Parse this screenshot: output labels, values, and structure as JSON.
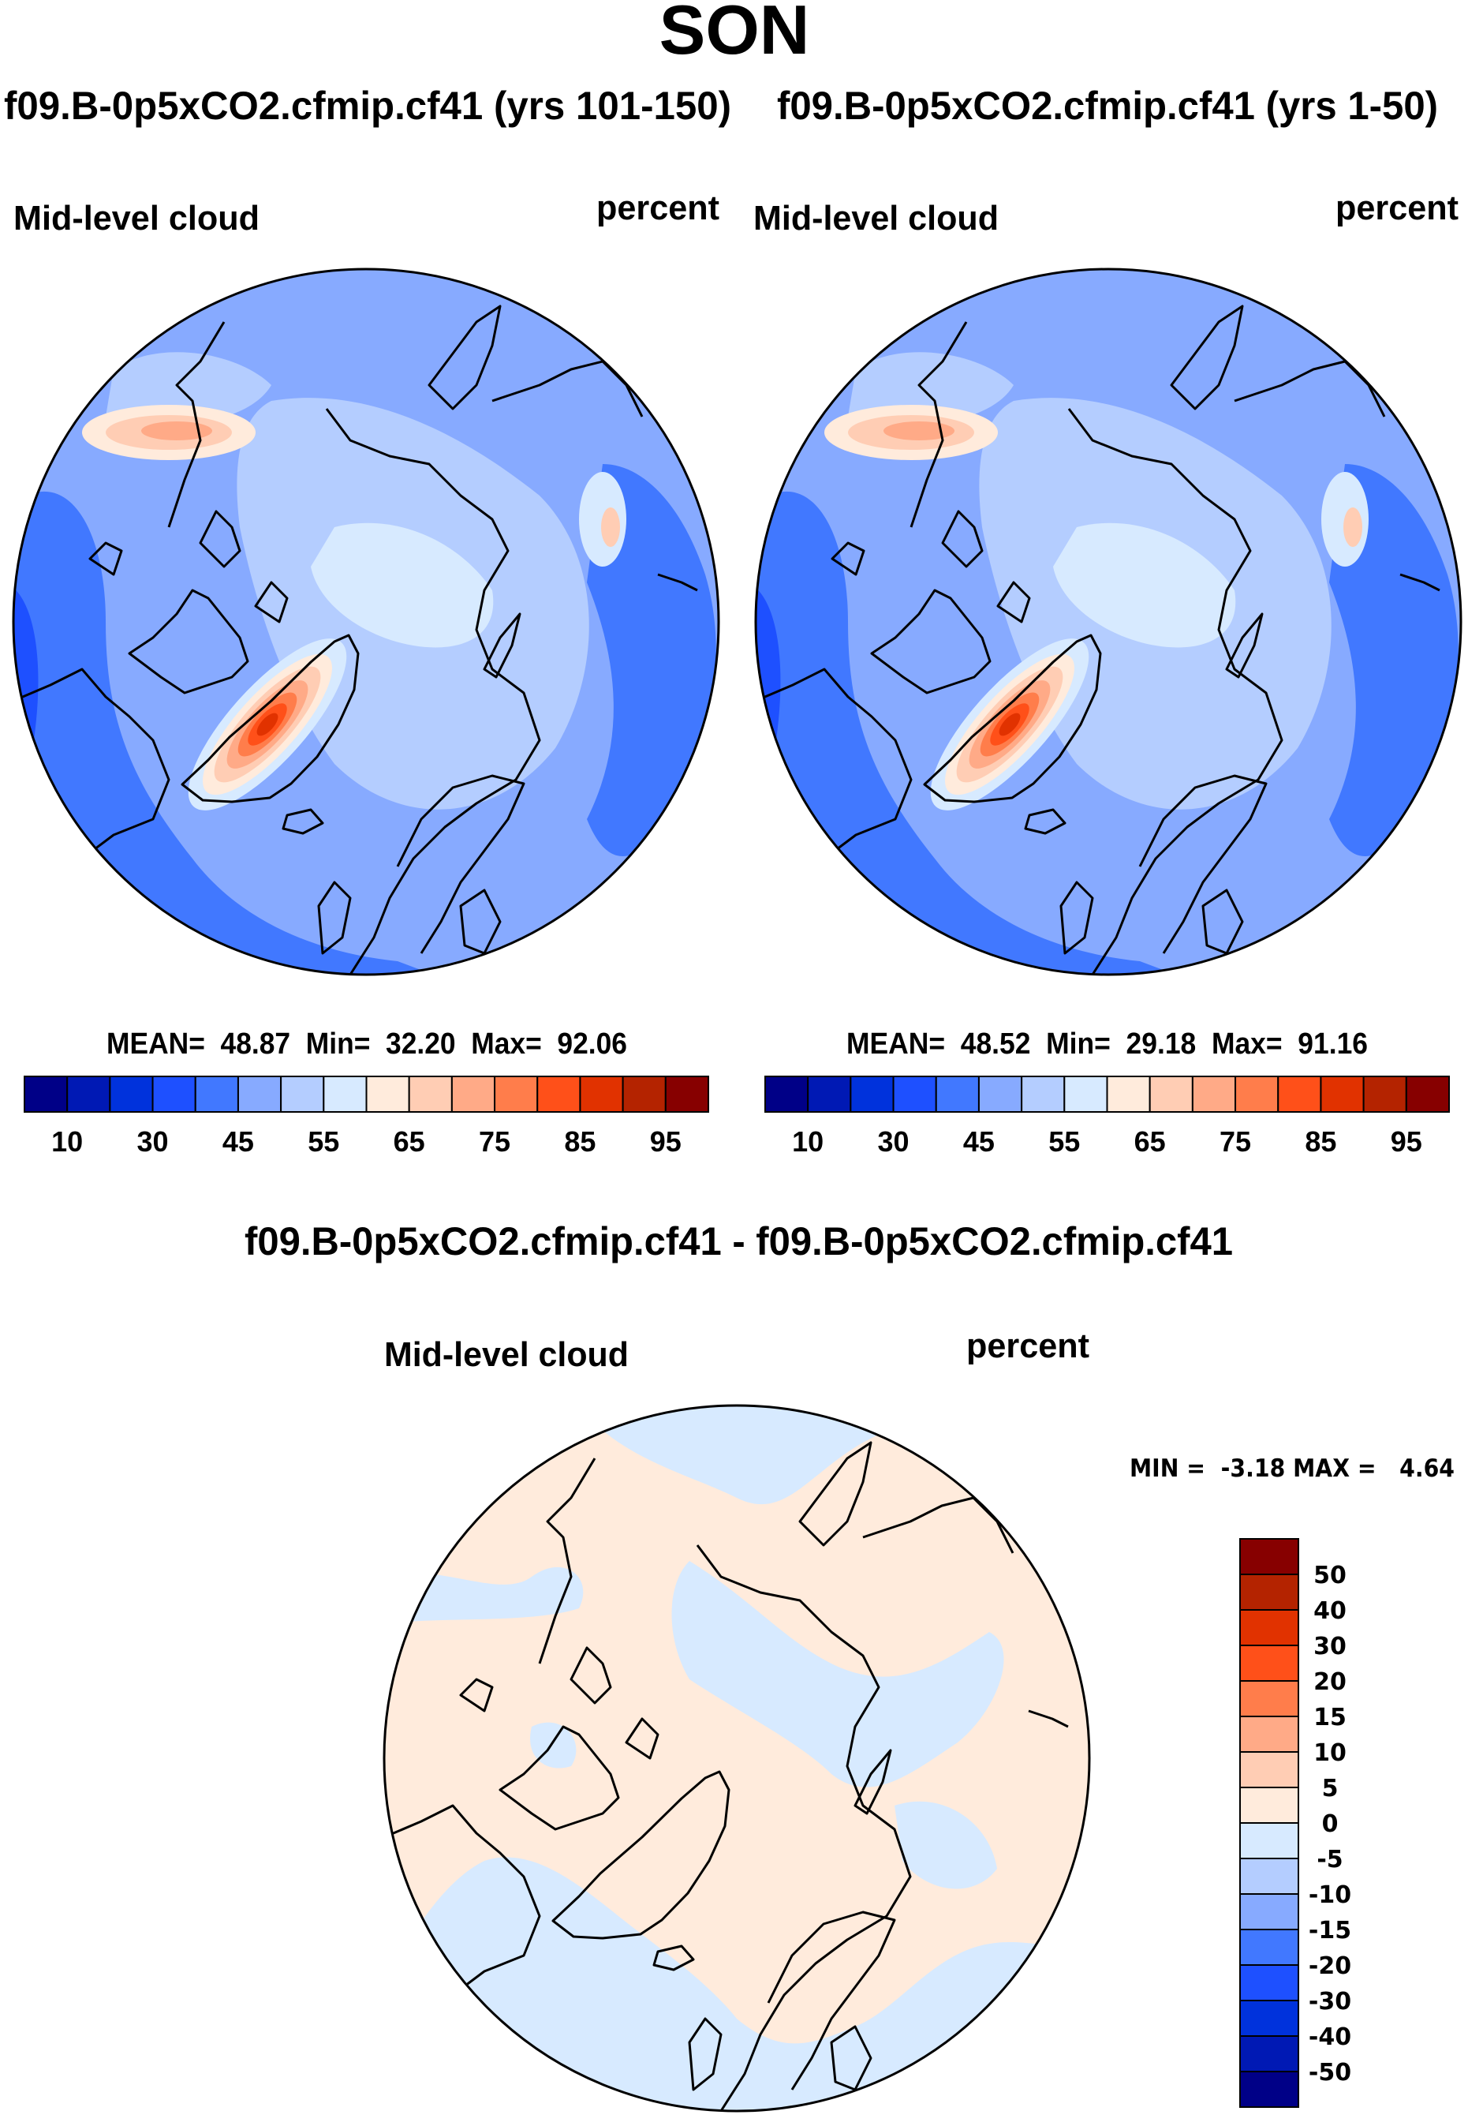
{
  "chart_data": {
    "type": "heatmap",
    "title": "SON",
    "panels": [
      {
        "subtitle": "f09.B-0p5xCO2.cfmip.cf41 (yrs 101-150)",
        "variable": "Mid-level cloud",
        "units": "percent",
        "stats": "MEAN=  48.87  Min=  32.20  Max=  92.06",
        "mean": 48.87,
        "min": 32.2,
        "max": 92.06
      },
      {
        "subtitle": "f09.B-0p5xCO2.cfmip.cf41 (yrs 1-50)",
        "variable": "Mid-level cloud",
        "units": "percent",
        "stats": "MEAN=  48.52  Min=  29.18  Max=  91.16",
        "mean": 48.52,
        "min": 29.18,
        "max": 91.16
      },
      {
        "subtitle": "f09.B-0p5xCO2.cfmip.cf41 - f09.B-0p5xCO2.cfmip.cf41",
        "variable": "Mid-level cloud",
        "units": "percent",
        "stats": "MIN =  -3.18 MAX =   4.64",
        "min": -3.18,
        "max": 4.64
      }
    ],
    "colorbar_colors": [
      "#000087",
      "#0019b4",
      "#0032dc",
      "#1e50ff",
      "#4178ff",
      "#87aaff",
      "#b4cdff",
      "#d7eaff",
      "#ffebdc",
      "#ffcdb4",
      "#ffaa87",
      "#ff7d4b",
      "#ff5019",
      "#e13200",
      "#b42300",
      "#870000"
    ],
    "abs_colorbar_labels": [
      "10",
      "30",
      "45",
      "55",
      "65",
      "75",
      "85",
      "95"
    ],
    "diff_colorbar_labels": [
      "50",
      "40",
      "30",
      "20",
      "15",
      "10",
      "5",
      "0",
      "-5",
      "-10",
      "-15",
      "-20",
      "-30",
      "-40",
      "-50"
    ]
  }
}
